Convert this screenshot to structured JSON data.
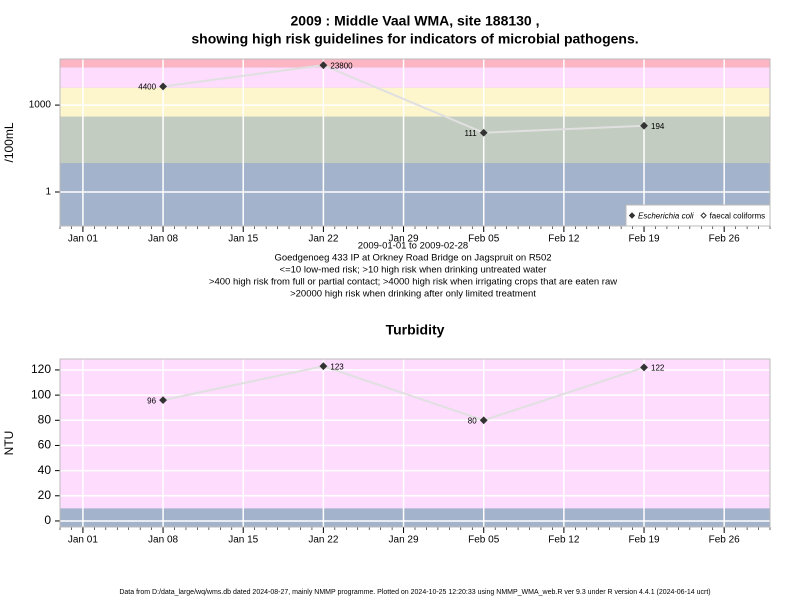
{
  "chart_data": [
    {
      "type": "line",
      "title": [
        "2009 : Middle Vaal WMA, site 188130 ,",
        "showing high risk guidelines for indicators of microbial pathogens."
      ],
      "y_label": "/100mL",
      "notes": [
        "2009-01-01 to 2009-02-28",
        "Goedgenoeg 433 IP at Orkney Road Bridge on Jagspruit on R502",
        "<=10 low-med risk; >10 high risk when drinking untreated water",
        ">400 high risk from full or partial contact; >4000 high risk when irrigating crops that are eaten raw",
        ">20000 high risk when drinking after only limited treatment"
      ],
      "x": [
        "2009-01-08",
        "2009-01-22",
        "2009-02-05",
        "2009-02-19"
      ],
      "xlim": [
        "2008-12-30",
        "2009-03-02"
      ],
      "xticks": [
        {
          "value": "2009-01-01",
          "label": "Jan 01"
        },
        {
          "value": "2009-01-08",
          "label": "Jan 08"
        },
        {
          "value": "2009-01-15",
          "label": "Jan 15"
        },
        {
          "value": "2009-01-22",
          "label": "Jan 22"
        },
        {
          "value": "2009-01-29",
          "label": "Jan 29"
        },
        {
          "value": "2009-02-05",
          "label": "Feb 05"
        },
        {
          "value": "2009-02-12",
          "label": "Feb 12"
        },
        {
          "value": "2009-02-19",
          "label": "Feb 19"
        },
        {
          "value": "2009-02-26",
          "label": "Feb 26"
        }
      ],
      "log_scale": true,
      "ylim": [
        0.067,
        39000
      ],
      "yticks": [
        1,
        1000
      ],
      "grid": true,
      "background": "#a3b3cb",
      "bands": [
        {
          "from": 10,
          "color": "#c3ccc0"
        },
        {
          "from": 400,
          "color": "#fdf5cc"
        },
        {
          "from": 4000,
          "color": "#fddcfd"
        },
        {
          "from": 20000,
          "color": "#fbb5c3"
        }
      ],
      "legend": "bottom-right",
      "series": [
        {
          "name": "Escherichia coli",
          "color": "#333333",
          "line_color": "#e0e0e0",
          "marker": "filled",
          "values": [
            4400,
            23800,
            111,
            194
          ]
        },
        {
          "name": "faecal coliforms",
          "color": "#333333",
          "line_color": "#e0e0e0",
          "marker": "open",
          "values": [
            null,
            null,
            null,
            null
          ]
        }
      ]
    },
    {
      "type": "line",
      "title": [
        "Turbidity"
      ],
      "y_label": "NTU",
      "x": [
        "2009-01-08",
        "2009-01-22",
        "2009-02-05",
        "2009-02-19"
      ],
      "xlim": [
        "2008-12-30",
        "2009-03-02"
      ],
      "xticks": [
        {
          "value": "2009-01-01",
          "label": "Jan 01"
        },
        {
          "value": "2009-01-08",
          "label": "Jan 08"
        },
        {
          "value": "2009-01-15",
          "label": "Jan 15"
        },
        {
          "value": "2009-01-22",
          "label": "Jan 22"
        },
        {
          "value": "2009-01-29",
          "label": "Jan 29"
        },
        {
          "value": "2009-02-05",
          "label": "Feb 05"
        },
        {
          "value": "2009-02-12",
          "label": "Feb 12"
        },
        {
          "value": "2009-02-19",
          "label": "Feb 19"
        },
        {
          "value": "2009-02-26",
          "label": "Feb 26"
        }
      ],
      "log_scale": false,
      "ylim": [
        -4.8,
        128.7
      ],
      "yticks": [
        0,
        20,
        40,
        60,
        80,
        100,
        120
      ],
      "grid": true,
      "background": "#a3b3cb",
      "bands": [
        {
          "from": 10,
          "color": "#fddcfd"
        }
      ],
      "series": [
        {
          "name": "Turbidity",
          "color": "#333333",
          "line_color": "#e0e0e0",
          "marker": "filled",
          "values": [
            96,
            123,
            80,
            122
          ]
        }
      ]
    }
  ],
  "footer": "Data from D:/data_large/wq/wms.db dated 2024-08-27, mainly NMMP programme. Plotted on 2024-10-25 12:20:33 using NMMP_WMA_web.R ver 9.3 under R version 4.4.1 (2024-06-14 ucrt)"
}
